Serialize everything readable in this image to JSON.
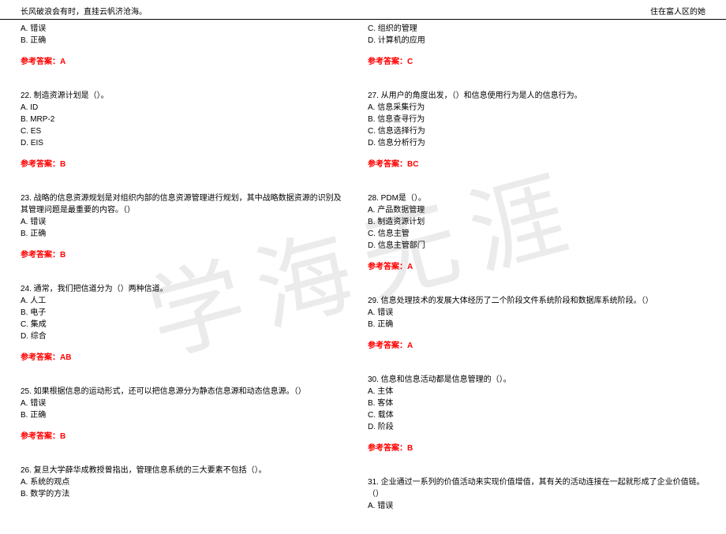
{
  "header": {
    "left": "长风破浪会有时，直挂云帆济沧海。",
    "right": "住在富人区的她"
  },
  "watermark": "学海无涯",
  "left_col": [
    {
      "opts": [
        "A. 错误",
        "B. 正确"
      ],
      "answer": "参考答案：A"
    },
    {
      "stem": "22. 制造资源计划是（）。",
      "opts": [
        "A. ID",
        "B. MRP-2",
        "C. ES",
        "D. EIS"
      ],
      "answer": "参考答案：B"
    },
    {
      "stem": "23. 战略的信息资源规划是对组织内部的信息资源管理进行规划，其中战略数据资源的识别及其管理问题是最重要的内容。（）",
      "opts": [
        "A. 错误",
        "B. 正确"
      ],
      "answer": "参考答案：B"
    },
    {
      "stem": "24. 通常，我们把信道分为（）两种信道。",
      "opts": [
        "A. 人工",
        "B. 电子",
        "C. 集成",
        "D. 综合"
      ],
      "answer": "参考答案：AB"
    },
    {
      "stem": "25. 如果根据信息的运动形式，还可以把信息源分为静态信息源和动态信息源。（）",
      "opts": [
        "A. 错误",
        "B. 正确"
      ],
      "answer": "参考答案：B"
    },
    {
      "stem": "26. 复旦大学薛华成教授曾指出，管理信息系统的三大要素不包括（）。",
      "opts": [
        "A. 系统的观点",
        "B. 数学的方法"
      ],
      "answer": ""
    }
  ],
  "right_col": [
    {
      "opts": [
        "C. 组织的管理",
        "D. 计算机的应用"
      ],
      "answer": "参考答案：C"
    },
    {
      "stem": "27. 从用户的角度出发，（）和信息使用行为是人的信息行为。",
      "opts": [
        "A. 信息采集行为",
        "B. 信息查寻行为",
        "C. 信息选择行为",
        "D. 信息分析行为"
      ],
      "answer": "参考答案：BC"
    },
    {
      "stem": "28. PDM是（）。",
      "opts": [
        "A. 产品数据管理",
        "B. 制造资源计划",
        "C. 信息主管",
        "D. 信息主管部门"
      ],
      "answer": "参考答案：A"
    },
    {
      "stem": "29. 信息处理技术的发展大体经历了二个阶段文件系统阶段和数据库系统阶段。（）",
      "opts": [
        "A. 错误",
        "B. 正确"
      ],
      "answer": "参考答案：A"
    },
    {
      "stem": "30. 信息和信息活动都是信息管理的（）。",
      "opts": [
        "A. 主体",
        "B. 客体",
        "C. 载体",
        "D. 阶段"
      ],
      "answer": "参考答案：B"
    },
    {
      "stem": "31. 企业通过一系列的价值活动来实现价值增值，其有关的活动连接在一起就形成了企业价值链。（）",
      "opts": [
        "A. 错误"
      ],
      "answer": ""
    }
  ]
}
